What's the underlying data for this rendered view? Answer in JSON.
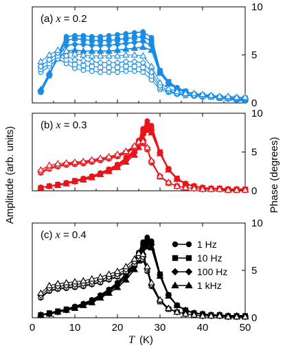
{
  "figure": {
    "ylabel_left": "Amplitude (arb. units)",
    "ylabel_right": "Phase (degrees)",
    "xlabel_italic": "T",
    "xlabel_unit": "(K)"
  },
  "legend": [
    {
      "label": "1 Hz",
      "marker": "circle"
    },
    {
      "label": "10 Hz",
      "marker": "square"
    },
    {
      "label": "100 Hz",
      "marker": "diamond"
    },
    {
      "label": "1 kHz",
      "marker": "triangle"
    }
  ],
  "chart_data": [
    {
      "type": "scatter",
      "panel_prefix": "(a) ",
      "panel_var": "x",
      "panel_suffix": " = 0.2",
      "color": "#1a8ce6",
      "xlim": [
        0,
        50
      ],
      "ylim_right": [
        0,
        10
      ],
      "x_ticks": [
        "0",
        "10",
        "20",
        "30",
        "40",
        "50"
      ],
      "y_ticks_right": [
        "0",
        "5",
        "10"
      ],
      "amplitude": {
        "x": [
          2,
          4,
          6,
          8,
          10,
          12,
          14,
          16,
          18,
          20,
          22,
          24,
          26,
          28,
          30,
          32,
          34,
          36,
          38,
          40,
          42,
          44,
          46,
          48,
          50
        ],
        "1 Hz": [
          1.1,
          2.8,
          5.0,
          6.9,
          7.0,
          7.0,
          6.9,
          6.9,
          7.0,
          7.1,
          7.2,
          7.3,
          7.4,
          6.8,
          3.4,
          2.2,
          1.6,
          1.2,
          0.9,
          0.8,
          0.7,
          0.5,
          0.4,
          0.3,
          0.2
        ],
        "10 Hz": [
          1.2,
          2.9,
          4.9,
          6.5,
          6.7,
          6.6,
          6.5,
          6.5,
          6.5,
          6.6,
          6.7,
          6.8,
          6.9,
          6.4,
          3.3,
          2.2,
          1.5,
          1.2,
          0.9,
          0.8,
          0.7,
          0.5,
          0.5,
          0.4,
          0.3
        ],
        "100 Hz": [
          1.3,
          3.0,
          4.8,
          6.0,
          6.1,
          6.1,
          6.0,
          6.0,
          6.0,
          6.1,
          6.2,
          6.3,
          6.4,
          6.0,
          3.2,
          2.1,
          1.5,
          1.2,
          0.9,
          0.8,
          0.7,
          0.6,
          0.5,
          0.4,
          0.3
        ],
        "1 kHz": [
          1.4,
          3.1,
          4.6,
          5.4,
          5.5,
          5.4,
          5.4,
          5.4,
          5.4,
          5.5,
          5.6,
          5.7,
          5.8,
          5.5,
          3.1,
          2.0,
          1.5,
          1.1,
          0.9,
          0.8,
          0.7,
          0.6,
          0.5,
          0.4,
          0.4
        ]
      },
      "phase": {
        "x": [
          2,
          4,
          6,
          8,
          10,
          12,
          14,
          16,
          18,
          20,
          22,
          24,
          26,
          28,
          30,
          32,
          34,
          36,
          38,
          40,
          42,
          44,
          46,
          48,
          50
        ],
        "1 Hz": [
          3.2,
          3.8,
          4.6,
          4.1,
          3.6,
          3.4,
          3.3,
          3.2,
          3.2,
          3.2,
          3.3,
          3.3,
          3.2,
          2.4,
          1.4,
          1.1,
          0.9,
          0.8,
          0.7,
          0.6,
          0.6,
          0.5,
          0.5,
          0.4,
          0.4
        ],
        "10 Hz": [
          3.5,
          4.1,
          4.9,
          4.5,
          4.0,
          3.9,
          3.8,
          3.7,
          3.7,
          3.7,
          3.8,
          3.8,
          3.7,
          2.8,
          1.6,
          1.2,
          1.0,
          0.8,
          0.8,
          0.7,
          0.6,
          0.6,
          0.5,
          0.5,
          0.5
        ],
        "100 Hz": [
          3.8,
          4.5,
          5.2,
          4.9,
          4.5,
          4.4,
          4.3,
          4.2,
          4.2,
          4.2,
          4.3,
          4.3,
          4.2,
          3.2,
          1.8,
          1.3,
          1.0,
          0.9,
          0.8,
          0.8,
          0.7,
          0.6,
          0.6,
          0.5,
          0.5
        ],
        "1 kHz": [
          4.3,
          5.0,
          5.5,
          5.4,
          5.1,
          5.0,
          4.9,
          4.9,
          4.9,
          4.9,
          5.0,
          5.0,
          4.9,
          3.8,
          2.1,
          1.5,
          1.2,
          1.0,
          1.0,
          0.9,
          0.8,
          0.7,
          0.7,
          0.6,
          0.6
        ]
      }
    },
    {
      "type": "scatter",
      "panel_prefix": "(b) ",
      "panel_var": "x",
      "panel_suffix": " = 0.3",
      "color": "#e8141c",
      "xlim": [
        0,
        50
      ],
      "ylim_right": [
        0,
        10
      ],
      "x_ticks": [
        "0",
        "10",
        "20",
        "30",
        "40",
        "50"
      ],
      "y_ticks_right": [
        "0",
        "5",
        "10"
      ],
      "amplitude": {
        "x": [
          2,
          4,
          6,
          8,
          10,
          12,
          14,
          16,
          18,
          20,
          22,
          24,
          25,
          26,
          27,
          28,
          30,
          32,
          34,
          36,
          38,
          40,
          42,
          44,
          46,
          48,
          50
        ],
        "1 Hz": [
          0.4,
          0.6,
          0.8,
          1.0,
          1.3,
          1.6,
          1.9,
          2.3,
          2.8,
          3.4,
          4.2,
          5.3,
          6.5,
          8.0,
          9.0,
          8.4,
          5.0,
          2.8,
          1.6,
          0.9,
          0.6,
          0.4,
          0.3,
          0.3,
          0.2,
          0.2,
          0.2
        ],
        "10 Hz": [
          0.4,
          0.6,
          0.8,
          1.0,
          1.3,
          1.5,
          1.8,
          2.2,
          2.7,
          3.3,
          4.1,
          5.1,
          6.2,
          7.5,
          8.5,
          8.1,
          5.0,
          2.8,
          1.6,
          0.9,
          0.6,
          0.4,
          0.3,
          0.3,
          0.2,
          0.2,
          0.2
        ],
        "100 Hz": [
          0.4,
          0.6,
          0.8,
          1.0,
          1.2,
          1.5,
          1.8,
          2.2,
          2.6,
          3.2,
          3.9,
          4.9,
          5.9,
          7.2,
          8.1,
          7.8,
          4.9,
          2.8,
          1.5,
          0.9,
          0.6,
          0.4,
          0.3,
          0.3,
          0.2,
          0.2,
          0.2
        ],
        "1 kHz": [
          0.4,
          0.6,
          0.7,
          0.9,
          1.2,
          1.4,
          1.7,
          2.1,
          2.5,
          3.0,
          3.7,
          4.6,
          5.6,
          6.8,
          7.8,
          7.5,
          4.8,
          2.7,
          1.5,
          0.9,
          0.6,
          0.4,
          0.3,
          0.3,
          0.2,
          0.2,
          0.2
        ]
      },
      "phase": {
        "x": [
          2,
          4,
          6,
          8,
          10,
          12,
          14,
          16,
          18,
          20,
          22,
          24,
          25,
          26,
          27,
          28,
          30,
          32,
          34,
          36,
          38,
          40,
          42,
          44,
          46,
          48,
          50
        ],
        "1 Hz": [
          2.3,
          2.8,
          3.1,
          3.3,
          3.4,
          3.5,
          3.7,
          3.9,
          4.1,
          4.4,
          4.8,
          5.5,
          6.0,
          6.1,
          5.3,
          3.6,
          1.8,
          1.0,
          0.6,
          0.4,
          0.3,
          0.2,
          0.2,
          0.2,
          0.1,
          0.1,
          0.1
        ],
        "10 Hz": [
          2.4,
          2.9,
          3.2,
          3.4,
          3.5,
          3.6,
          3.8,
          4.0,
          4.2,
          4.5,
          4.9,
          5.6,
          6.1,
          6.2,
          5.4,
          3.7,
          1.8,
          1.0,
          0.6,
          0.4,
          0.3,
          0.2,
          0.2,
          0.2,
          0.1,
          0.1,
          0.1
        ],
        "100 Hz": [
          2.5,
          3.1,
          3.3,
          3.5,
          3.6,
          3.7,
          3.9,
          4.1,
          4.3,
          4.6,
          5.0,
          5.7,
          6.2,
          6.3,
          5.5,
          3.8,
          1.9,
          1.0,
          0.6,
          0.4,
          0.3,
          0.2,
          0.2,
          0.2,
          0.1,
          0.1,
          0.1
        ],
        "1 kHz": [
          2.7,
          3.3,
          3.5,
          3.6,
          3.7,
          3.8,
          4.0,
          4.2,
          4.4,
          4.7,
          5.1,
          5.8,
          6.3,
          6.4,
          5.6,
          3.9,
          1.9,
          1.1,
          0.6,
          0.4,
          0.3,
          0.2,
          0.2,
          0.2,
          0.1,
          0.1,
          0.1
        ]
      }
    },
    {
      "type": "scatter",
      "panel_prefix": "(c) ",
      "panel_var": "x",
      "panel_suffix": " = 0.4",
      "color": "#000000",
      "xlim": [
        0,
        50
      ],
      "ylim_right": [
        0,
        10
      ],
      "x_ticks": [
        "0",
        "10",
        "20",
        "30",
        "40",
        "50"
      ],
      "y_ticks_right": [
        "0",
        "5",
        "10"
      ],
      "amplitude": {
        "x": [
          2,
          4,
          6,
          8,
          10,
          12,
          14,
          16,
          18,
          20,
          22,
          24,
          25,
          26,
          27,
          28,
          30,
          32,
          34,
          36,
          38,
          40,
          42,
          44,
          46,
          48,
          50
        ],
        "1 Hz": [
          0.3,
          0.5,
          0.7,
          0.9,
          1.2,
          1.5,
          1.9,
          2.4,
          3.0,
          3.7,
          4.6,
          5.8,
          6.9,
          8.0,
          8.5,
          8.1,
          4.6,
          2.4,
          1.3,
          0.8,
          0.5,
          0.4,
          0.3,
          0.3,
          0.2,
          0.2,
          0.2
        ],
        "10 Hz": [
          0.3,
          0.5,
          0.7,
          0.9,
          1.1,
          1.4,
          1.8,
          2.3,
          2.9,
          3.6,
          4.5,
          5.6,
          6.6,
          7.6,
          8.2,
          7.9,
          4.6,
          2.4,
          1.3,
          0.8,
          0.5,
          0.4,
          0.3,
          0.3,
          0.2,
          0.2,
          0.2
        ],
        "100 Hz": [
          0.3,
          0.4,
          0.6,
          0.8,
          1.1,
          1.4,
          1.7,
          2.2,
          2.8,
          3.4,
          4.3,
          5.4,
          6.4,
          7.3,
          7.9,
          7.7,
          4.5,
          2.4,
          1.3,
          0.8,
          0.5,
          0.4,
          0.3,
          0.3,
          0.2,
          0.2,
          0.2
        ],
        "1 kHz": [
          0.3,
          0.4,
          0.6,
          0.8,
          1.0,
          1.3,
          1.6,
          2.1,
          2.6,
          3.2,
          4.0,
          5.1,
          6.0,
          6.9,
          7.5,
          7.4,
          4.4,
          2.3,
          1.3,
          0.8,
          0.5,
          0.4,
          0.3,
          0.3,
          0.2,
          0.2,
          0.2
        ]
      },
      "phase": {
        "x": [
          2,
          4,
          6,
          8,
          10,
          12,
          14,
          16,
          18,
          20,
          22,
          24,
          25,
          26,
          27,
          28,
          30,
          32,
          34,
          36,
          38,
          40,
          42,
          44,
          46,
          48,
          50
        ],
        "1 Hz": [
          2.1,
          2.8,
          3.0,
          3.1,
          3.2,
          3.3,
          3.5,
          3.7,
          4.0,
          4.3,
          4.8,
          5.6,
          6.2,
          6.1,
          4.9,
          3.3,
          1.7,
          0.9,
          0.6,
          0.4,
          0.3,
          0.2,
          0.2,
          0.2,
          0.1,
          0.1,
          0.1
        ],
        "10 Hz": [
          2.2,
          2.9,
          3.1,
          3.2,
          3.3,
          3.4,
          3.6,
          3.8,
          4.1,
          4.4,
          4.9,
          5.7,
          6.3,
          6.2,
          5.0,
          3.4,
          1.7,
          0.9,
          0.6,
          0.4,
          0.3,
          0.2,
          0.2,
          0.2,
          0.1,
          0.1,
          0.1
        ],
        "100 Hz": [
          2.4,
          3.1,
          3.3,
          3.4,
          3.5,
          3.6,
          3.8,
          4.0,
          4.3,
          4.6,
          5.1,
          5.9,
          6.5,
          6.4,
          5.2,
          3.5,
          1.8,
          1.0,
          0.6,
          0.4,
          0.3,
          0.2,
          0.2,
          0.2,
          0.1,
          0.1,
          0.1
        ],
        "1 kHz": [
          2.6,
          3.4,
          3.6,
          3.7,
          3.8,
          3.9,
          4.1,
          4.3,
          4.6,
          4.9,
          5.4,
          6.2,
          6.8,
          6.7,
          5.4,
          3.7,
          1.9,
          1.0,
          0.6,
          0.4,
          0.3,
          0.2,
          0.2,
          0.2,
          0.1,
          0.1,
          0.1
        ]
      }
    }
  ]
}
